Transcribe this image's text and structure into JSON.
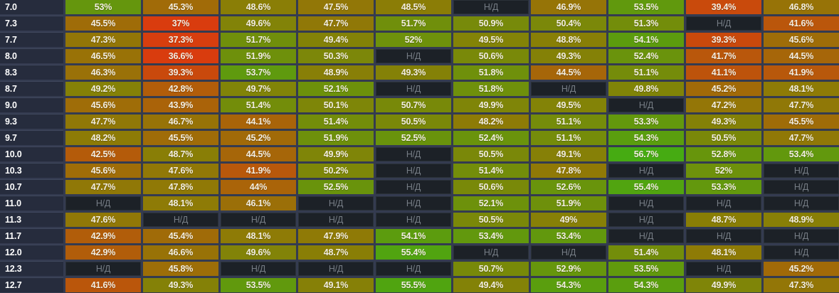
{
  "na_label": "Н/Д",
  "colors": {
    "background": "#343b50",
    "grid_gap": "#343b50",
    "label_bg": "#262c3d",
    "label_border": "#3f475d",
    "label_text": "#ffffff",
    "cell_text": "#f2ede1",
    "na_bg": "#1c2127",
    "na_text": "#767d85",
    "scale_low": "#d93c0e",
    "scale_mid": "#8b7d06",
    "scale_high": "#46ab12"
  },
  "chart_data": {
    "type": "heatmap",
    "value_format": "percent",
    "na_label": "Н/Д",
    "row_labels": [
      "7.0",
      "7.3",
      "7.7",
      "8.0",
      "8.3",
      "8.7",
      "9.0",
      "9.3",
      "9.7",
      "10.0",
      "10.3",
      "10.7",
      "11.0",
      "11.3",
      "11.7",
      "12.0",
      "12.3",
      "12.7"
    ],
    "values": [
      [
        53,
        45.3,
        48.6,
        47.5,
        48.5,
        null,
        46.9,
        53.5,
        39.4,
        46.8
      ],
      [
        45.5,
        37,
        49.6,
        47.7,
        51.7,
        50.9,
        50.4,
        51.3,
        null,
        41.6
      ],
      [
        47.3,
        37.3,
        51.7,
        49.4,
        52,
        49.5,
        48.8,
        54.1,
        39.3,
        45.6
      ],
      [
        46.5,
        36.6,
        51.9,
        50.3,
        null,
        50.6,
        49.3,
        52.4,
        41.7,
        44.5
      ],
      [
        46.3,
        39.3,
        53.7,
        48.9,
        49.3,
        51.8,
        44.5,
        51.1,
        41.1,
        41.9
      ],
      [
        49.2,
        42.8,
        49.7,
        52.1,
        null,
        51.8,
        null,
        49.8,
        45.2,
        48.1
      ],
      [
        45.6,
        43.9,
        51.4,
        50.1,
        50.7,
        49.9,
        49.5,
        null,
        47.2,
        47.7
      ],
      [
        47.7,
        46.7,
        44.1,
        51.4,
        50.5,
        48.2,
        51.1,
        53.3,
        49.3,
        45.5
      ],
      [
        48.2,
        45.5,
        45.2,
        51.9,
        52.5,
        52.4,
        51.1,
        54.3,
        50.5,
        47.7
      ],
      [
        42.5,
        48.7,
        44.5,
        49.9,
        null,
        50.5,
        49.1,
        56.7,
        52.8,
        53.4
      ],
      [
        45.6,
        47.6,
        41.9,
        50.2,
        null,
        51.4,
        47.8,
        null,
        52,
        null
      ],
      [
        47.7,
        47.8,
        44,
        52.5,
        null,
        50.6,
        52.6,
        55.4,
        53.3,
        null
      ],
      [
        null,
        48.1,
        46.1,
        null,
        null,
        52.1,
        51.9,
        null,
        null,
        null
      ],
      [
        47.6,
        null,
        null,
        null,
        null,
        50.5,
        49,
        null,
        48.7,
        48.9
      ],
      [
        42.9,
        45.4,
        48.1,
        47.9,
        54.1,
        53.4,
        53.4,
        null,
        null,
        null
      ],
      [
        42.9,
        46.6,
        49.6,
        48.7,
        55.4,
        null,
        null,
        51.4,
        48.1,
        null
      ],
      [
        null,
        45.8,
        null,
        null,
        null,
        50.7,
        52.9,
        53.5,
        null,
        45.2
      ],
      [
        41.6,
        49.3,
        53.5,
        49.1,
        55.5,
        49.4,
        54.3,
        54.3,
        49.9,
        47.3
      ]
    ],
    "color_scale": [
      [
        37,
        "#d93c0e"
      ],
      [
        48.5,
        "#8b7d06"
      ],
      [
        56.7,
        "#46ab12"
      ]
    ]
  }
}
